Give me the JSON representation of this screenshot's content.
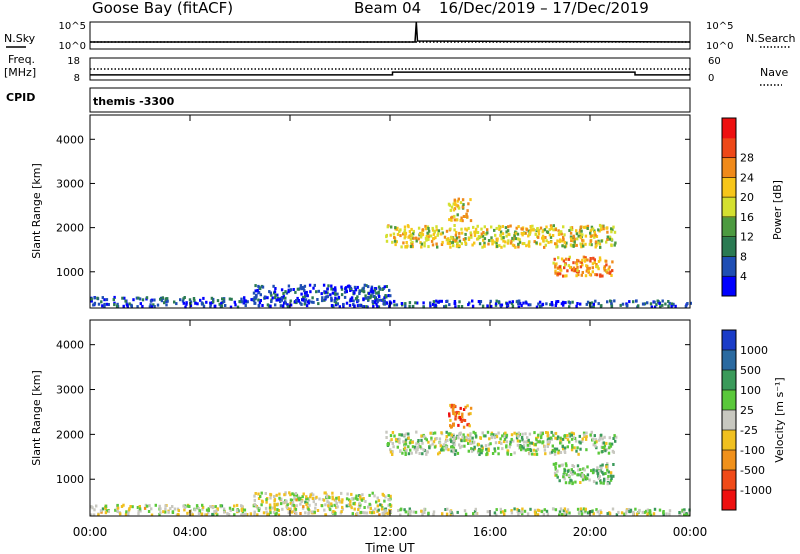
{
  "header": {
    "title": "Goose Bay (fitACF)",
    "beam": "Beam 04",
    "date_range": "16/Dec/2019 – 17/Dec/2019"
  },
  "left_labels": {
    "nsky": "N.Sky",
    "freq": "Freq.",
    "freq_unit": "[MHz]",
    "cpid": "CPID"
  },
  "right_labels": {
    "nsearch": "N.Search",
    "nave": "Nave"
  },
  "cpid_value": "themis -3300",
  "colors": {
    "scatter_gray": "#c8c8c0",
    "axis": "#000000"
  },
  "chart_data": [
    {
      "type": "line",
      "panel": "noise",
      "y_ticks_left": [
        "10^5",
        "10^0"
      ],
      "y_ticks_right": [
        "10^5",
        "10^0"
      ],
      "series": [
        {
          "name": "N.Sky",
          "style": "solid",
          "x_hours": [
            0,
            13,
            13.05,
            13.1,
            24
          ],
          "values": [
            20,
            20,
            100000,
            30,
            20
          ]
        },
        {
          "name": "N.Search",
          "style": "dotted",
          "x_hours": [
            0,
            24
          ],
          "values": [
            20,
            20
          ]
        }
      ]
    },
    {
      "type": "line",
      "panel": "freq_nave",
      "y_ticks_left": [
        "18",
        "8"
      ],
      "y_ticks_right": [
        "60",
        "0"
      ],
      "series": [
        {
          "name": "Freq.",
          "style": "solid",
          "x_hours": [
            0,
            12.1,
            12.1,
            21.8,
            21.8,
            24
          ],
          "values": [
            10.3,
            10.3,
            11.6,
            11.6,
            10.3,
            10.3
          ]
        },
        {
          "name": "Nave",
          "style": "dotted",
          "x_hours": [
            0,
            24
          ],
          "values": [
            30,
            30
          ]
        }
      ]
    },
    {
      "type": "heatmap",
      "panel": "power",
      "ylabel": "Slant Range [km]",
      "y_ticks": [
        "1000",
        "2000",
        "3000",
        "4000"
      ],
      "ylim": [
        180,
        4550
      ],
      "xlim": [
        0,
        24
      ],
      "colorbar": {
        "label": "Power [dB]",
        "ticks": [
          "4",
          "8",
          "12",
          "16",
          "20",
          "24",
          "28"
        ],
        "colors": [
          "#0000ff",
          "#1f4eb4",
          "#2a7a52",
          "#4c9a40",
          "#d4e030",
          "#f7c61a",
          "#f08a1a",
          "#ee4818",
          "#ee1010"
        ]
      },
      "regions": [
        {
          "x": [
            0.0,
            12.0
          ],
          "r": [
            200,
            420
          ],
          "level": 0.15
        },
        {
          "x": [
            6.5,
            12.0
          ],
          "r": [
            400,
            700
          ],
          "level": 0.15
        },
        {
          "x": [
            11.8,
            21.0
          ],
          "r": [
            1550,
            2050
          ],
          "level": 0.55
        },
        {
          "x": [
            14.3,
            15.2
          ],
          "r": [
            2150,
            2650
          ],
          "level": 0.6
        },
        {
          "x": [
            18.5,
            20.9
          ],
          "r": [
            900,
            1350
          ],
          "level": 0.7
        },
        {
          "x": [
            11.5,
            24.0
          ],
          "r": [
            200,
            340
          ],
          "level": 0.15
        }
      ]
    },
    {
      "type": "heatmap",
      "panel": "velocity",
      "ylabel": "Slant Range [km]",
      "y_ticks": [
        "1000",
        "2000",
        "3000",
        "4000"
      ],
      "ylim": [
        180,
        4550
      ],
      "xlim": [
        0,
        24
      ],
      "x_ticks": [
        "00:00",
        "04:00",
        "08:00",
        "12:00",
        "16:00",
        "20:00",
        "00:00"
      ],
      "xlabel": "Time UT",
      "colorbar": {
        "label": "Velocity [m s⁻¹]",
        "ticks": [
          "1000",
          "500",
          "100",
          "25",
          "-25",
          "-100",
          "-500",
          "-1000"
        ],
        "colors": [
          "#1a3cc8",
          "#2a6aa0",
          "#3a9a5a",
          "#5ac83a",
          "#c8c8c0",
          "#f0c020",
          "#f0901a",
          "#f04a18",
          "#ee1010"
        ]
      },
      "regions": [
        {
          "x": [
            0.0,
            12.0
          ],
          "r": [
            200,
            420
          ],
          "level": 0.5
        },
        {
          "x": [
            6.5,
            12.0
          ],
          "r": [
            400,
            700
          ],
          "level": 0.5
        },
        {
          "x": [
            11.8,
            21.0
          ],
          "r": [
            1550,
            2050
          ],
          "level": 0.45
        },
        {
          "x": [
            14.3,
            15.2
          ],
          "r": [
            2150,
            2650
          ],
          "level": 0.8
        },
        {
          "x": [
            18.5,
            20.9
          ],
          "r": [
            900,
            1350
          ],
          "level": 0.4
        },
        {
          "x": [
            11.5,
            24.0
          ],
          "r": [
            200,
            340
          ],
          "level": 0.45
        }
      ]
    }
  ]
}
